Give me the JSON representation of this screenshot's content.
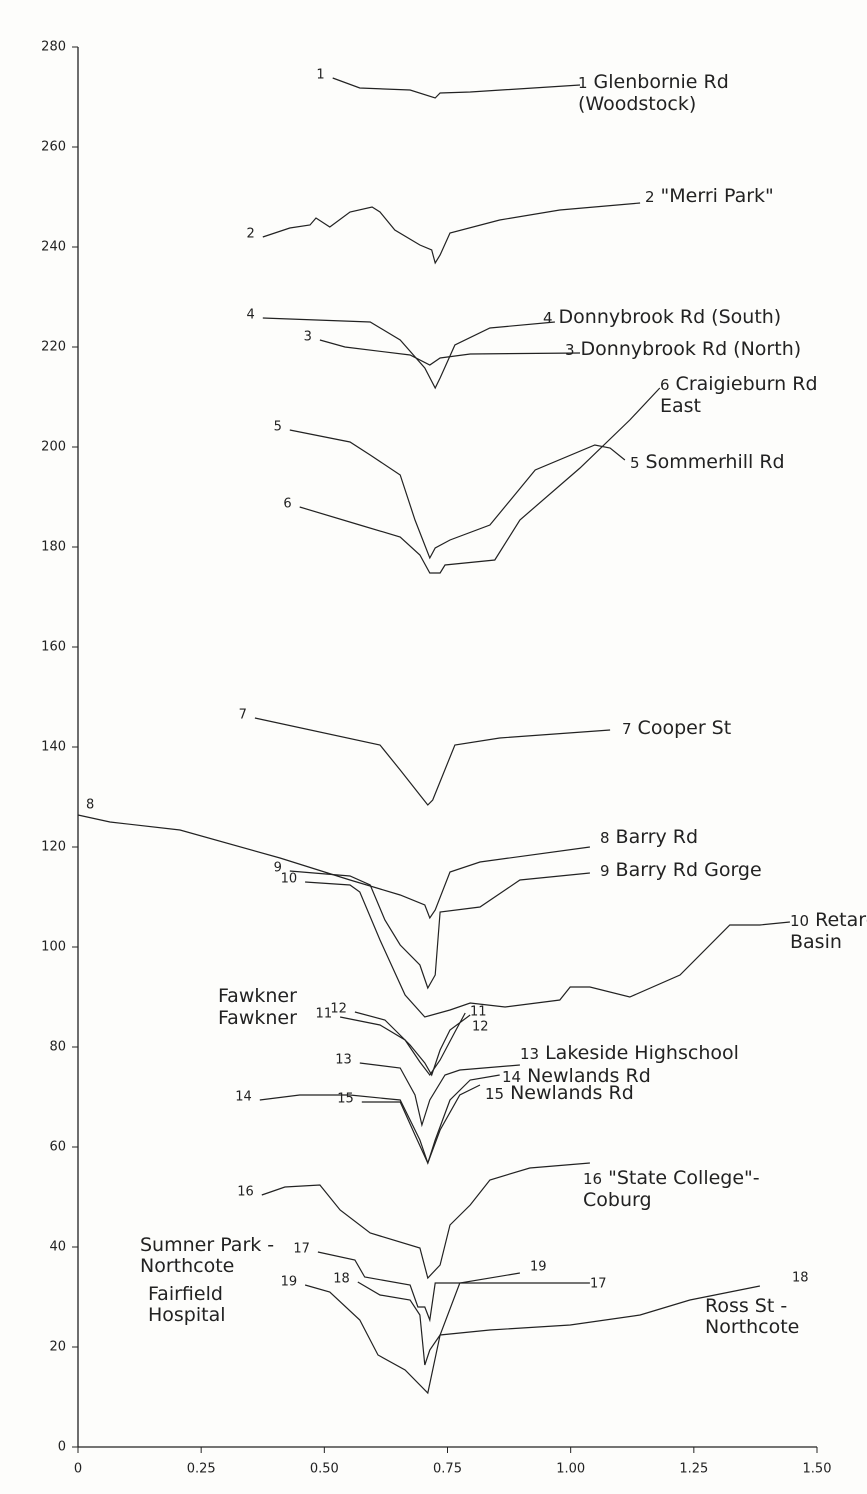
{
  "chart_data": {
    "type": "line",
    "color": "#222222",
    "xlim": [
      0,
      1.5
    ],
    "xticks": [
      0,
      0.25,
      {
        "value": 0.5,
        "label": "0.50"
      },
      0.75,
      {
        "value": 1,
        "label": "1.00"
      },
      1.25,
      {
        "value": 1.5,
        "label": "1.50"
      }
    ],
    "ylim": [
      0,
      280
    ],
    "yticks": [
      0,
      20,
      40,
      60,
      80,
      100,
      120,
      140,
      160,
      180,
      200,
      220,
      240,
      260,
      280
    ],
    "series": [
      {
        "id": "1",
        "name": "Glenbornie Rd (Woodstock)",
        "x": [
          0.517,
          0.572,
          0.674,
          0.725,
          0.735,
          0.796,
          1.019
        ],
        "values": [
          273.8,
          271.8,
          271.4,
          269.8,
          270.8,
          271,
          272.4
        ]
      },
      {
        "id": "2",
        "name": "\"Merri Park\"",
        "x": [
          0.375,
          0.43,
          0.471,
          0.483,
          0.511,
          0.552,
          0.597,
          0.613,
          0.643,
          0.694,
          0.718,
          0.725,
          0.735,
          0.755,
          0.856,
          0.978,
          1.141
        ],
        "values": [
          242,
          243.8,
          244.4,
          245.8,
          244,
          247,
          248,
          247,
          243.4,
          240.4,
          239.4,
          236.8,
          238.4,
          242.8,
          245.4,
          247.4,
          248.8
        ]
      },
      {
        "id": "3",
        "name": "Donnybrook Rd (North)",
        "x": [
          0.491,
          0.542,
          0.674,
          0.714,
          0.735,
          0.796,
          1.019
        ],
        "values": [
          221.4,
          220,
          218.4,
          216.4,
          217.8,
          218.6,
          218.8
        ]
      },
      {
        "id": "4",
        "name": "Donnybrook Rd (South)",
        "x": [
          0.375,
          0.593,
          0.654,
          0.704,
          0.725,
          0.735,
          0.765,
          0.836,
          0.968
        ],
        "values": [
          225.8,
          225,
          221.4,
          215.8,
          211.8,
          213.8,
          220.4,
          223.8,
          225
        ]
      },
      {
        "id": "5",
        "name": "Sommerhill Rd",
        "x": [
          0.43,
          0.552,
          0.593,
          0.654,
          0.684,
          0.714,
          0.725,
          0.755,
          0.836,
          0.928,
          1.049,
          1.08,
          1.11
        ],
        "values": [
          203.4,
          201,
          198.4,
          194.4,
          185.4,
          177.8,
          179.8,
          181.4,
          184.4,
          195.4,
          200.4,
          199.8,
          197.4
        ]
      },
      {
        "id": "6",
        "name": "Craigieburn Rd East",
        "x": [
          0.45,
          0.572,
          0.654,
          0.694,
          0.714,
          0.735,
          0.745,
          0.846,
          0.897,
          1.019,
          1.12,
          1.181
        ],
        "values": [
          188,
          184.4,
          182,
          178.4,
          174.8,
          174.8,
          176.4,
          177.4,
          185.4,
          195.8,
          205.4,
          211.8
        ]
      },
      {
        "id": "7",
        "name": "Cooper St",
        "x": [
          0.359,
          0.613,
          0.654,
          0.694,
          0.71,
          0.72,
          0.765,
          0.856,
          1.08
        ],
        "values": [
          145.8,
          140.4,
          135.4,
          130.4,
          128.4,
          129.4,
          140.4,
          141.8,
          143.4
        ]
      },
      {
        "id": "8",
        "name": "Barry Rd",
        "x": [
          0,
          0.065,
          0.207,
          0.41,
          0.552,
          0.654,
          0.704,
          0.714,
          0.725,
          0.755,
          0.816,
          1.039
        ],
        "values": [
          126.4,
          125,
          123.4,
          117.8,
          113.4,
          110.4,
          108.4,
          105.8,
          107.4,
          115,
          117,
          120
        ]
      },
      {
        "id": "9",
        "name": "Barry Rd Gorge",
        "x": [
          0.43,
          0.552,
          0.593,
          0.623,
          0.654,
          0.694,
          0.71,
          0.725,
          0.735,
          0.816,
          0.897,
          1.039
        ],
        "values": [
          115.2,
          114.2,
          112.4,
          105.4,
          100.4,
          96.4,
          91.8,
          94.4,
          107,
          108,
          113.4,
          114.8
        ]
      },
      {
        "id": "10",
        "name": "Retarding Basin",
        "x": [
          0.461,
          0.552,
          0.572,
          0.613,
          0.664,
          0.704,
          0.755,
          0.796,
          0.867,
          0.978,
          0.999,
          1.039,
          1.12,
          1.222,
          1.323,
          1.384,
          1.445
        ],
        "values": [
          113,
          112.4,
          111,
          101.4,
          90.4,
          86,
          87.4,
          88.8,
          88,
          89.4,
          92,
          92,
          90,
          94.4,
          104.4,
          104.4,
          105
        ]
      },
      {
        "id": "11",
        "name": "Fawkner",
        "x": [
          0.532,
          0.613,
          0.664,
          0.694,
          0.714,
          0.735,
          0.765,
          0.786
        ],
        "values": [
          86,
          84.4,
          81.4,
          77,
          74.4,
          77.4,
          83,
          86.8
        ]
      },
      {
        "id": "12",
        "name": "Fawkner",
        "x": [
          0.562,
          0.623,
          0.674,
          0.704,
          0.718,
          0.735,
          0.755,
          0.796
        ],
        "values": [
          87,
          85.4,
          80.4,
          76.8,
          74.4,
          79.4,
          83.4,
          86.4
        ]
      },
      {
        "id": "13",
        "name": "Lakeside Highschool",
        "x": [
          0.572,
          0.654,
          0.684,
          0.698,
          0.714,
          0.745,
          0.775,
          0.897
        ],
        "values": [
          76.8,
          75.8,
          70.4,
          64.4,
          69.4,
          74.4,
          75.4,
          76.4
        ]
      },
      {
        "id": "14",
        "name": "Newlands Rd",
        "x": [
          0.369,
          0.45,
          0.552,
          0.654,
          0.674,
          0.694,
          0.71,
          0.725,
          0.755,
          0.796,
          0.856
        ],
        "values": [
          69.4,
          70.4,
          70.4,
          69.4,
          65.4,
          61.4,
          56.8,
          61.4,
          69.4,
          73.4,
          74.4
        ]
      },
      {
        "id": "15",
        "name": "Newlands Rd",
        "x": [
          0.576,
          0.654,
          0.684,
          0.71,
          0.735,
          0.775,
          0.816
        ],
        "values": [
          69,
          69,
          62.4,
          56.8,
          63.4,
          70.4,
          72.4
        ]
      },
      {
        "id": "16",
        "name": "\"State College\"-Coburg",
        "x": [
          0.373,
          0.42,
          0.491,
          0.532,
          0.593,
          0.694,
          0.71,
          0.735,
          0.755,
          0.796,
          0.836,
          0.917,
          1.039
        ],
        "values": [
          50.4,
          52,
          52.4,
          47.4,
          42.8,
          39.8,
          33.8,
          36.4,
          44.4,
          48.4,
          53.4,
          55.8,
          56.8
        ]
      },
      {
        "id": "17",
        "name": "Sumner Park -Northcote",
        "x": [
          0.487,
          0.562,
          0.582,
          0.674,
          0.69,
          0.704,
          0.714,
          0.725,
          0.755,
          1.039
        ],
        "values": [
          39,
          37.4,
          34,
          32.4,
          28,
          28,
          25.4,
          32.8,
          32.8,
          32.8
        ]
      },
      {
        "id": "18",
        "name": "Ross St - Northcote",
        "x": [
          0.568,
          0.613,
          0.674,
          0.694,
          0.704,
          0.714,
          0.735,
          0.836,
          0.999,
          1.141,
          1.242,
          1.384
        ],
        "values": [
          33,
          30.4,
          29.4,
          26.4,
          16.4,
          19.4,
          22.4,
          23.4,
          24.4,
          26.4,
          29.4,
          32.2
        ]
      },
      {
        "id": "19",
        "name": "Fairfield Hospital",
        "x": [
          0.461,
          0.511,
          0.572,
          0.609,
          0.664,
          0.71,
          0.735,
          0.775,
          0.897
        ],
        "values": [
          32.4,
          31,
          25.4,
          18.4,
          15.4,
          10.8,
          22.4,
          32.8,
          34.8
        ]
      }
    ]
  }
}
